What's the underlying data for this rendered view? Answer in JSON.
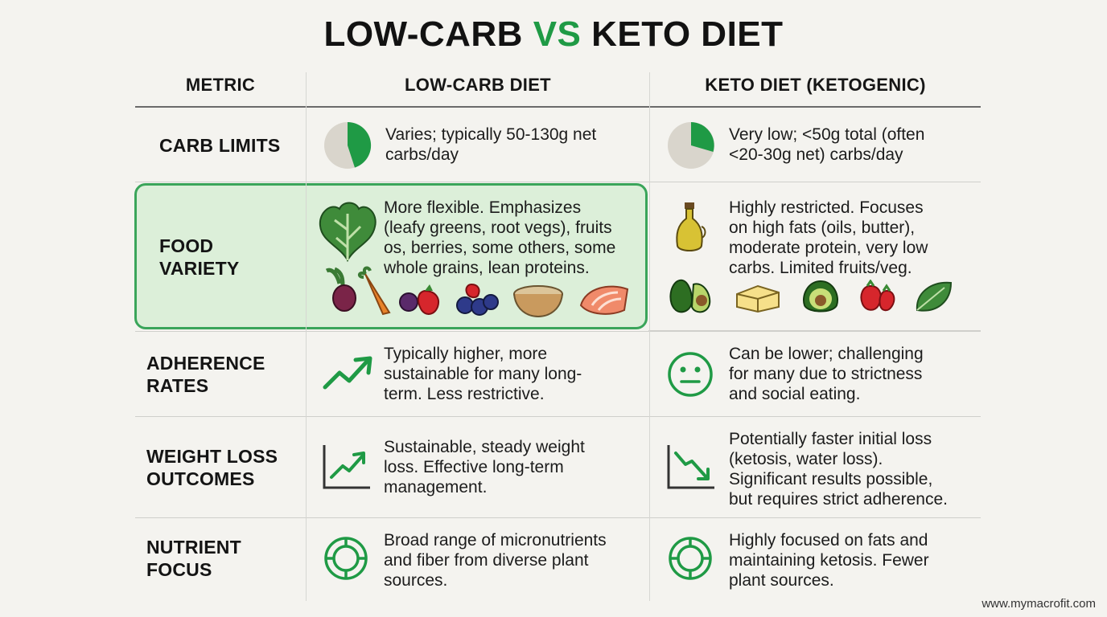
{
  "title": {
    "part1": "LOW-CARB",
    "vs": "VS",
    "part2": "KETO DIET"
  },
  "headers": {
    "metric": "METRIC",
    "lowcarb": "LOW-CARB DIET",
    "keto": "KETO DIET (KETOGENIC)"
  },
  "colors": {
    "accent": "#1f9a45",
    "highlight_fill": "#dcefd9",
    "highlight_border": "#3aa55a"
  },
  "rows": [
    {
      "metric_lines": [
        "CARB LIMITS"
      ],
      "lowcarb_icon": "pie-chart-icon",
      "lowcarb_lines": [
        "Varies; typically 50-130g net",
        "carbs/day"
      ],
      "keto_icon": "pie-chart-icon",
      "keto_lines": [
        "Very low; <50g total (often",
        "<20-30g net) carbs/day"
      ]
    },
    {
      "metric_lines": [
        "FOOD",
        "VARIETY"
      ],
      "lowcarb_icon": "vegetables-icon",
      "lowcarb_lines": [
        "More flexible. Emphasizes",
        "(leafy greens, root vegs), fruits",
        "os, berries, some others, some",
        "whole grains, lean proteins."
      ],
      "keto_icon": "oil-bottle-icon",
      "keto_lines": [
        "Highly restricted. Focuses",
        "on high fats (oils, butter),",
        "moderate protein, very low",
        "carbs. Limited fruits/veg."
      ]
    },
    {
      "metric_lines": [
        "ADHERENCE",
        "RATES"
      ],
      "lowcarb_icon": "trend-up-icon",
      "lowcarb_lines": [
        "Typically higher, more",
        "sustainable for many long-",
        "term. Less restrictive."
      ],
      "keto_icon": "neutral-face-icon",
      "keto_lines": [
        "Can be lower; challenging",
        "for many due to strictness",
        "and social eating."
      ]
    },
    {
      "metric_lines": [
        "WEIGHT LOSS",
        "OUTCOMES"
      ],
      "lowcarb_icon": "chart-up-icon",
      "lowcarb_lines": [
        "Sustainable, steady weight",
        "loss. Effective long-term",
        "management."
      ],
      "keto_icon": "chart-down-icon",
      "keto_lines": [
        "Potentially faster initial loss",
        "(ketosis, water loss).",
        "Significant results possible,",
        "but requires strict adherence."
      ]
    },
    {
      "metric_lines": [
        "NUTRIENT",
        "FOCUS"
      ],
      "lowcarb_icon": "target-icon",
      "lowcarb_lines": [
        "Broad range of micronutrients",
        "and fiber from diverse plant",
        "sources."
      ],
      "keto_icon": "target-icon",
      "keto_lines": [
        "Highly focused on fats and",
        "maintaining ketosis. Fewer",
        "plant sources."
      ]
    }
  ],
  "footer": "www.mymacrofit.com"
}
